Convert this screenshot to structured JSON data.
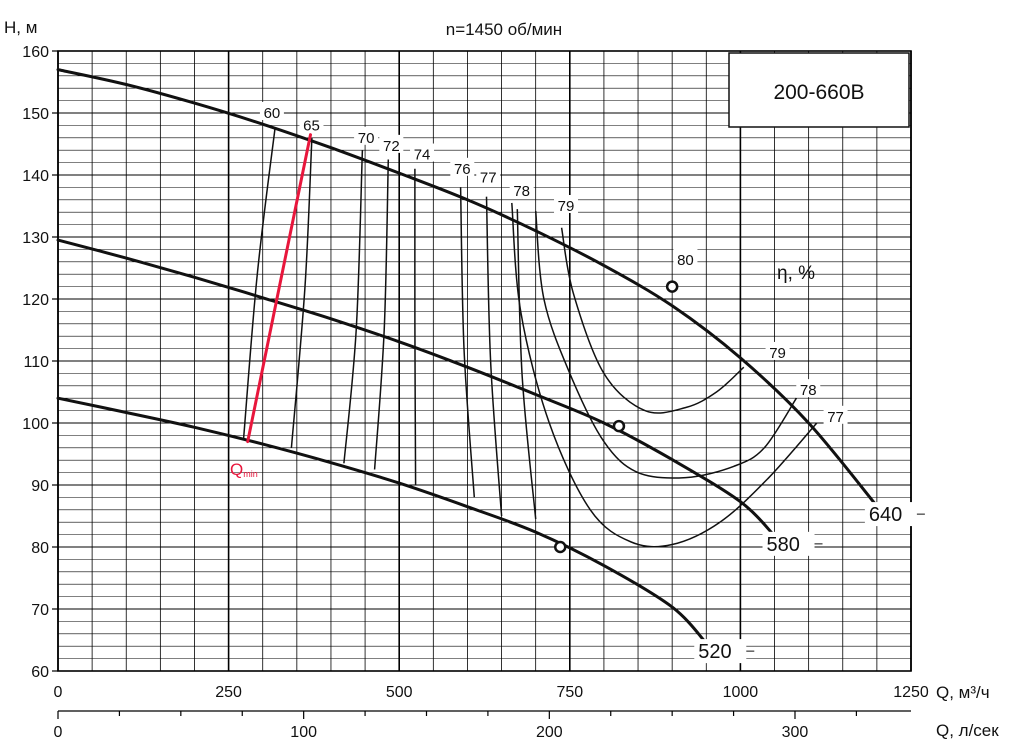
{
  "chart_data": {
    "type": "line",
    "title": "n=1450 об/мин",
    "model_label": "200-660B",
    "ylabel": "H, м",
    "xlabel": "Q, м³/ч",
    "x2label": "Q, л/сек",
    "efficiency_label": "η, %",
    "qmin_label": "Q",
    "qmin_sub": "min",
    "xlim": [
      0,
      1250
    ],
    "ylim": [
      60,
      160
    ],
    "x_ticks": [
      0,
      250,
      500,
      750,
      1000,
      1250
    ],
    "x_tick_labels": [
      "0",
      "250",
      "500",
      "750",
      "1000",
      "1250"
    ],
    "x2_ticks": [
      0,
      100,
      200,
      300
    ],
    "x2_tick_labels": [
      "0",
      "100",
      "200",
      "300"
    ],
    "y_ticks": [
      60,
      70,
      80,
      90,
      100,
      110,
      120,
      130,
      140,
      150,
      160
    ],
    "y_tick_labels": [
      "60",
      "70",
      "80",
      "90",
      "100",
      "110",
      "120",
      "130",
      "140",
      "150",
      "160"
    ],
    "grid": true,
    "impeller_curves": [
      {
        "name": "640",
        "x": [
          0,
          100,
          200,
          300,
          400,
          500,
          600,
          700,
          800,
          900,
          1000,
          1100,
          1200
        ],
        "y": [
          157,
          154.6,
          151.6,
          148.2,
          144.4,
          140.3,
          136,
          131,
          125.4,
          118.9,
          110.5,
          100,
          86.6
        ],
        "bep": [
          900,
          122
        ]
      },
      {
        "name": "580",
        "x": [
          0,
          100,
          200,
          300,
          400,
          500,
          600,
          700,
          800,
          900,
          1000,
          1050
        ],
        "y": [
          129.5,
          126.6,
          123.5,
          120.2,
          116.8,
          113.1,
          109,
          104.6,
          100,
          94.1,
          87.3,
          81.8
        ],
        "bep": [
          822,
          99.5
        ]
      },
      {
        "name": "520",
        "x": [
          0,
          100,
          200,
          300,
          400,
          500,
          600,
          700,
          800,
          900,
          950
        ],
        "y": [
          104,
          101.7,
          99.3,
          96.6,
          93.6,
          90.3,
          86.5,
          82.4,
          77,
          70.3,
          64.5
        ],
        "bep": [
          736,
          80
        ]
      }
    ],
    "efficiency_contours": [
      {
        "name": "60",
        "x": [
          318,
          292,
          272
        ],
        "y": [
          147.5,
          124,
          97.5
        ]
      },
      {
        "name": "65",
        "x": [
          372,
          362,
          342
        ],
        "y": [
          146,
          122,
          96
        ]
      },
      {
        "name": "70",
        "x": [
          446,
          437,
          419
        ],
        "y": [
          144,
          115,
          93.5
        ]
      },
      {
        "name": "72",
        "x": [
          484,
          478,
          464
        ],
        "y": [
          142.5,
          115,
          92.5
        ]
      },
      {
        "name": "74",
        "x": [
          523,
          523,
          524
        ],
        "y": [
          141,
          116,
          90
        ]
      },
      {
        "name": "76",
        "x": [
          590,
          595,
          610
        ],
        "y": [
          138,
          112,
          88
        ]
      },
      {
        "name": "77",
        "x": [
          628,
          634,
          650
        ],
        "y": [
          136.5,
          110,
          85
        ]
      },
      {
        "name": "78",
        "x": [
          673,
          680,
          700
        ],
        "y": [
          134.5,
          108,
          84.5
        ]
      },
      {
        "name": "79",
        "x": [
          738,
          755,
          800,
          860,
          920,
          965,
          1005
        ],
        "y": [
          131.5,
          121,
          108,
          102,
          102.5,
          105,
          109
        ]
      },
      {
        "name": "78",
        "x": [
          700,
          712,
          750,
          800,
          850,
          920,
          990,
          1035,
          1082
        ],
        "y": [
          134.2,
          120,
          108,
          97,
          92,
          91.2,
          93,
          96,
          104
        ]
      },
      {
        "name": "77",
        "x": [
          665,
          678,
          720,
          780,
          840,
          900,
          970,
          1040,
          1112
        ],
        "y": [
          135.5,
          118,
          100,
          86,
          80.8,
          80.4,
          84,
          91,
          100
        ]
      }
    ],
    "efficiency_labels": [
      {
        "text": "60",
        "x": 312,
        "y": 150
      },
      {
        "text": "65",
        "x": 370,
        "y": 148
      },
      {
        "text": "70",
        "x": 450,
        "y": 146
      },
      {
        "text": "72",
        "x": 487,
        "y": 144.7
      },
      {
        "text": "74",
        "x": 532,
        "y": 143.3
      },
      {
        "text": "76",
        "x": 591,
        "y": 141
      },
      {
        "text": "77",
        "x": 629,
        "y": 139.6
      },
      {
        "text": "78",
        "x": 678,
        "y": 137.4
      },
      {
        "text": "79",
        "x": 743,
        "y": 135
      },
      {
        "text": "80",
        "x": 918,
        "y": 126.3
      },
      {
        "text": "79",
        "x": 1053,
        "y": 111.3
      },
      {
        "text": "78",
        "x": 1098,
        "y": 105.3
      },
      {
        "text": "77",
        "x": 1138,
        "y": 101
      }
    ],
    "qmin_line": {
      "x": [
        278,
        370
      ],
      "y": [
        97,
        146.5
      ]
    },
    "colors": {
      "curve": "#111111",
      "grid": "#000000",
      "qmin": "#e8163c",
      "background": "#ffffff"
    }
  }
}
